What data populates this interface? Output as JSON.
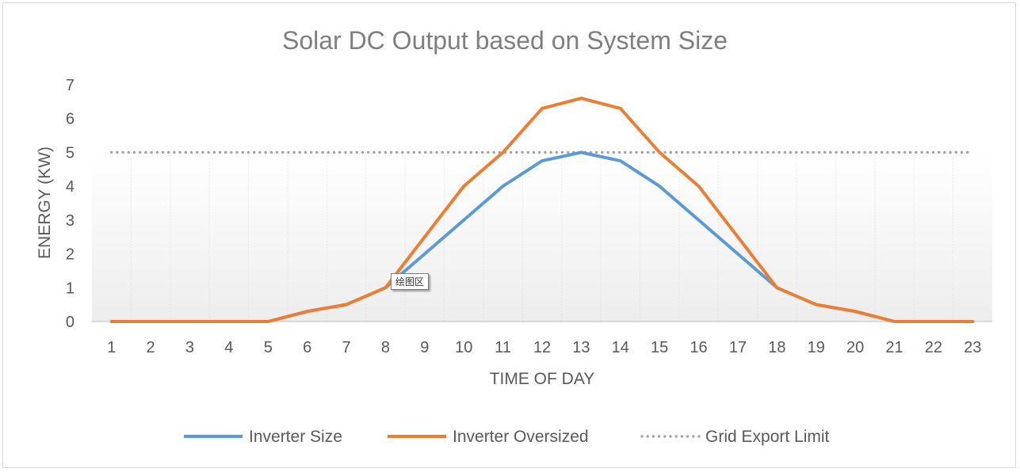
{
  "chart_data": {
    "type": "line",
    "title": "Solar DC Output based on System Size",
    "xlabel": "TIME OF DAY",
    "ylabel": "ENERGY (KW)",
    "ylim": [
      0,
      7
    ],
    "yticks": [
      0,
      1,
      2,
      3,
      4,
      5,
      6,
      7
    ],
    "categories": [
      "1",
      "2",
      "3",
      "4",
      "5",
      "6",
      "7",
      "8",
      "9",
      "10",
      "11",
      "12",
      "13",
      "14",
      "15",
      "16",
      "17",
      "18",
      "19",
      "20",
      "21",
      "22",
      "23"
    ],
    "grid": "vertical dotted",
    "legend": "bottom",
    "series": [
      {
        "name": "Inverter Size",
        "color": "#5b9bd5",
        "style": "solid",
        "values": [
          0,
          0,
          0,
          0,
          0,
          0.3,
          0.5,
          1.0,
          2.0,
          3.0,
          4.0,
          4.75,
          5.0,
          4.75,
          4.0,
          3.0,
          2.0,
          1.0,
          0.5,
          0.3,
          0,
          0,
          0
        ]
      },
      {
        "name": "Inverter Oversized",
        "color": "#ed7d31",
        "style": "solid",
        "values": [
          0,
          0,
          0,
          0,
          0,
          0.3,
          0.5,
          1.0,
          2.5,
          4.0,
          5.0,
          6.3,
          6.6,
          6.3,
          5.0,
          4.0,
          2.5,
          1.0,
          0.5,
          0.3,
          0,
          0,
          0
        ]
      },
      {
        "name": "Grid Export Limit",
        "color": "#a5a5a5",
        "style": "dotted",
        "values": [
          5,
          5,
          5,
          5,
          5,
          5,
          5,
          5,
          5,
          5,
          5,
          5,
          5,
          5,
          5,
          5,
          5,
          5,
          5,
          5,
          5,
          5,
          5
        ]
      }
    ]
  },
  "tooltip": {
    "text": "绘图区"
  }
}
